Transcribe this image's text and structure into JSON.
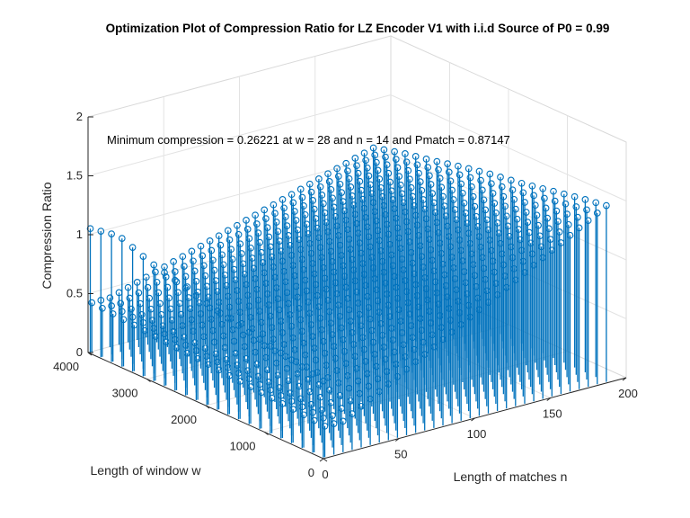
{
  "chart_data": {
    "type": "stem3",
    "title": "Optimization Plot of Compression Ratio for LZ Encoder V1 with i.i.d Source of P0 = 0.99",
    "xlabel": "Length of matches n",
    "ylabel": "Length of window w",
    "zlabel": "Compression Ratio",
    "xlim": [
      0,
      200
    ],
    "ylim": [
      0,
      4000
    ],
    "zlim": [
      0,
      2
    ],
    "x_ticks": [
      "0",
      "50",
      "100",
      "150",
      "200"
    ],
    "y_ticks": [
      "0",
      "1000",
      "2000",
      "3000",
      "4000"
    ],
    "z_ticks": [
      "0",
      "0.5",
      "1",
      "1.5",
      "2"
    ],
    "annotation": "Minimum compression = 0.26221 at w = 28 and n = 14 and Pmatch = 0.87147",
    "minimum": {
      "compression": 0.26221,
      "w": 28,
      "n": 14,
      "pmatch": 0.87147
    },
    "series_color": "#0072BD",
    "marker": "circle",
    "grid": true,
    "view": "3d-box",
    "profiles": {
      "window_ridge_at_max_n": [
        {
          "w": 28,
          "cr": 1.51
        },
        {
          "w": 500,
          "cr": 1.47
        },
        {
          "w": 1000,
          "cr": 1.42
        },
        {
          "w": 1500,
          "cr": 1.37
        },
        {
          "w": 2000,
          "cr": 1.33
        },
        {
          "w": 2500,
          "cr": 1.28
        },
        {
          "w": 3000,
          "cr": 1.22
        },
        {
          "w": 3500,
          "cr": 1.17
        },
        {
          "w": 4000,
          "cr": 1.1
        }
      ],
      "small_window_column_n1": [
        {
          "w": 28,
          "cr": 0.65
        },
        {
          "w": 500,
          "cr": 0.7
        },
        {
          "w": 1000,
          "cr": 0.75
        },
        {
          "w": 1500,
          "cr": 0.8
        },
        {
          "w": 2000,
          "cr": 0.86
        },
        {
          "w": 2500,
          "cr": 0.93
        },
        {
          "w": 3000,
          "cr": 1.0
        },
        {
          "w": 3500,
          "cr": 1.1
        },
        {
          "w": 4000,
          "cr": 1.05
        }
      ]
    }
  }
}
